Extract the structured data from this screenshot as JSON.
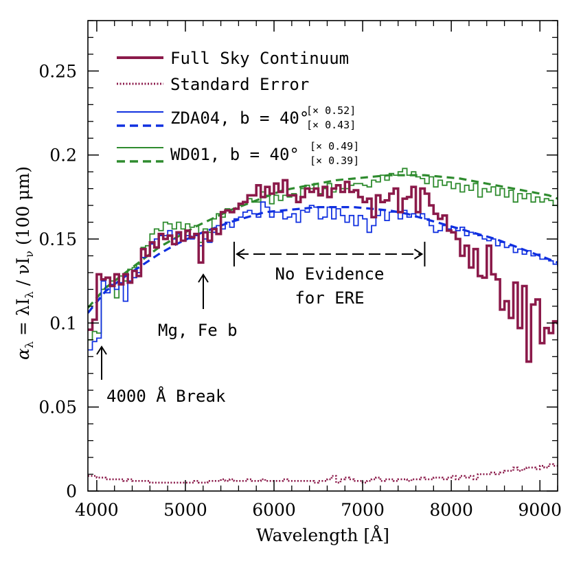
{
  "chart_data": {
    "type": "line",
    "xlabel": "Wavelength [Å]",
    "ylabel_parts": [
      "α",
      "λ",
      " = λI",
      "λ",
      " / νI",
      "ν",
      " (100 μm)"
    ],
    "xlim": [
      3900,
      9200
    ],
    "ylim": [
      0,
      0.28
    ],
    "x_ticks": [
      4000,
      5000,
      6000,
      7000,
      8000,
      9000
    ],
    "x_tick_labels": [
      "4000",
      "5000",
      "6000",
      "7000",
      "8000",
      "9000"
    ],
    "y_ticks": [
      0,
      0.05,
      0.1,
      0.15,
      0.2,
      0.25
    ],
    "y_tick_labels": [
      "0",
      "0.05",
      "0.1",
      "0.15",
      "0.2",
      "0.25"
    ],
    "legend_position": "top-left",
    "legend": [
      {
        "label": "Full Sky Continuum",
        "color": "#8b1a4a",
        "style": "solid-thick"
      },
      {
        "label": "Standard Error",
        "color": "#8b1a4a",
        "style": "dotted"
      },
      {
        "label": "ZDA04, b = 40°",
        "color": "#1030e0",
        "style": "solid+dashed",
        "scale_1": "[× 0.52]",
        "scale_2": "[× 0.43]"
      },
      {
        "label": "WD01, b = 40°",
        "color": "#2e8b2e",
        "style": "solid+dashed",
        "scale_1": "[× 0.49]",
        "scale_2": "[× 0.39]"
      }
    ],
    "annotations": {
      "break": "4000 Å Break",
      "mgfe": "Mg, Fe b",
      "ere_line1": "No Evidence",
      "ere_line2": "for ERE",
      "ere_range": [
        5550,
        7700
      ]
    },
    "colors": {
      "full_sky": "#8b1a4a",
      "zda": "#1030e0",
      "wd": "#2e8b2e"
    },
    "series": [
      {
        "name": "Full Sky Continuum",
        "style": "step-thick",
        "x": [
          3900,
          3950,
          4000,
          4050,
          4100,
          4150,
          4200,
          4250,
          4300,
          4350,
          4400,
          4450,
          4500,
          4550,
          4600,
          4650,
          4700,
          4750,
          4800,
          4850,
          4900,
          4950,
          5000,
          5050,
          5100,
          5150,
          5200,
          5250,
          5300,
          5350,
          5400,
          5450,
          5500,
          5550,
          5600,
          5650,
          5700,
          5750,
          5800,
          5850,
          5900,
          5950,
          6000,
          6050,
          6100,
          6150,
          6200,
          6250,
          6300,
          6350,
          6400,
          6450,
          6500,
          6550,
          6600,
          6650,
          6700,
          6750,
          6800,
          6850,
          6900,
          6950,
          7000,
          7050,
          7100,
          7150,
          7200,
          7250,
          7300,
          7350,
          7400,
          7450,
          7500,
          7550,
          7600,
          7650,
          7700,
          7750,
          7800,
          7850,
          7900,
          7950,
          8000,
          8050,
          8100,
          8150,
          8200,
          8250,
          8300,
          8350,
          8400,
          8450,
          8500,
          8550,
          8600,
          8650,
          8700,
          8750,
          8800,
          8850,
          8900,
          8950,
          9000,
          9050,
          9100,
          9150,
          9200
        ],
        "y": [
          0.096,
          0.102,
          0.129,
          0.126,
          0.127,
          0.122,
          0.129,
          0.123,
          0.129,
          0.124,
          0.131,
          0.128,
          0.144,
          0.14,
          0.148,
          0.145,
          0.153,
          0.15,
          0.152,
          0.147,
          0.154,
          0.149,
          0.155,
          0.151,
          0.153,
          0.136,
          0.154,
          0.149,
          0.156,
          0.153,
          0.166,
          0.167,
          0.166,
          0.168,
          0.171,
          0.172,
          0.176,
          0.176,
          0.182,
          0.175,
          0.181,
          0.177,
          0.183,
          0.178,
          0.185,
          0.176,
          0.176,
          0.172,
          0.175,
          0.18,
          0.178,
          0.18,
          0.176,
          0.181,
          0.175,
          0.18,
          0.182,
          0.178,
          0.184,
          0.178,
          0.179,
          0.175,
          0.172,
          0.174,
          0.163,
          0.176,
          0.172,
          0.173,
          0.177,
          0.18,
          0.166,
          0.174,
          0.175,
          0.181,
          0.166,
          0.18,
          0.177,
          0.17,
          0.165,
          0.162,
          0.164,
          0.155,
          0.154,
          0.15,
          0.14,
          0.146,
          0.133,
          0.144,
          0.128,
          0.127,
          0.146,
          0.129,
          0.126,
          0.108,
          0.113,
          0.103,
          0.124,
          0.097,
          0.122,
          0.077,
          0.111,
          0.114,
          0.088,
          0.097,
          0.094,
          0.101,
          0.1
        ]
      },
      {
        "name": "Standard Error",
        "style": "step-dotted",
        "x": [
          3900,
          3950,
          4000,
          4050,
          4100,
          4150,
          4200,
          4250,
          4300,
          4350,
          4400,
          4450,
          4500,
          4550,
          4600,
          4650,
          4700,
          4750,
          4800,
          4850,
          4900,
          4950,
          5000,
          5050,
          5100,
          5150,
          5200,
          5250,
          5300,
          5350,
          5400,
          5450,
          5500,
          5550,
          5600,
          5650,
          5700,
          5750,
          5800,
          5850,
          5900,
          5950,
          6000,
          6050,
          6100,
          6150,
          6200,
          6250,
          6300,
          6350,
          6400,
          6450,
          6500,
          6550,
          6600,
          6650,
          6700,
          6750,
          6800,
          6850,
          6900,
          6950,
          7000,
          7050,
          7100,
          7150,
          7200,
          7250,
          7300,
          7350,
          7400,
          7450,
          7500,
          7550,
          7600,
          7650,
          7700,
          7750,
          7800,
          7850,
          7900,
          7950,
          8000,
          8050,
          8100,
          8150,
          8200,
          8250,
          8300,
          8350,
          8400,
          8450,
          8500,
          8550,
          8600,
          8650,
          8700,
          8750,
          8800,
          8850,
          8900,
          8950,
          9000,
          9050,
          9100,
          9150,
          9200
        ],
        "y": [
          0.009,
          0.009,
          0.008,
          0.008,
          0.007,
          0.007,
          0.007,
          0.007,
          0.006,
          0.007,
          0.006,
          0.006,
          0.006,
          0.006,
          0.005,
          0.005,
          0.005,
          0.005,
          0.005,
          0.005,
          0.005,
          0.005,
          0.005,
          0.005,
          0.006,
          0.005,
          0.005,
          0.006,
          0.006,
          0.006,
          0.007,
          0.006,
          0.007,
          0.006,
          0.006,
          0.006,
          0.007,
          0.006,
          0.006,
          0.007,
          0.006,
          0.006,
          0.006,
          0.006,
          0.007,
          0.006,
          0.006,
          0.006,
          0.006,
          0.006,
          0.006,
          0.005,
          0.006,
          0.006,
          0.007,
          0.009,
          0.005,
          0.007,
          0.008,
          0.007,
          0.006,
          0.006,
          0.005,
          0.006,
          0.007,
          0.008,
          0.006,
          0.007,
          0.007,
          0.006,
          0.007,
          0.007,
          0.006,
          0.007,
          0.007,
          0.008,
          0.007,
          0.007,
          0.008,
          0.008,
          0.007,
          0.008,
          0.009,
          0.007,
          0.009,
          0.008,
          0.009,
          0.007,
          0.01,
          0.01,
          0.01,
          0.011,
          0.01,
          0.011,
          0.012,
          0.012,
          0.014,
          0.012,
          0.013,
          0.014,
          0.014,
          0.013,
          0.015,
          0.014,
          0.016,
          0.015,
          0.015
        ]
      },
      {
        "name": "ZDA04, b = 40° [× 0.52]",
        "style": "step",
        "x": [
          3900,
          3950,
          4000,
          4050,
          4100,
          4150,
          4200,
          4250,
          4300,
          4350,
          4400,
          4450,
          4500,
          4550,
          4600,
          4650,
          4700,
          4750,
          4800,
          4850,
          4900,
          4950,
          5000,
          5050,
          5100,
          5150,
          5200,
          5250,
          5300,
          5350,
          5400,
          5450,
          5500,
          5550,
          5600,
          5650,
          5700,
          5750,
          5800,
          5850,
          5900,
          5950,
          6000,
          6050,
          6100,
          6150,
          6200,
          6250,
          6300,
          6350,
          6400,
          6450,
          6500,
          6550,
          6600,
          6650,
          6700,
          6750,
          6800,
          6850,
          6900,
          6950,
          7000,
          7050,
          7100,
          7150,
          7200,
          7250,
          7300,
          7350,
          7400,
          7450,
          7500,
          7550,
          7600,
          7650,
          7700,
          7750,
          7800,
          7850,
          7900,
          7950,
          8000,
          8050,
          8100,
          8150,
          8200,
          8250,
          8300,
          8350,
          8400,
          8450,
          8500,
          8550,
          8600,
          8650,
          8700,
          8750,
          8800,
          8850,
          8900,
          8950,
          9000,
          9050,
          9100,
          9150,
          9200
        ],
        "y": [
          0.084,
          0.089,
          0.091,
          0.125,
          0.118,
          0.123,
          0.12,
          0.124,
          0.113,
          0.125,
          0.127,
          0.13,
          0.139,
          0.14,
          0.147,
          0.15,
          0.152,
          0.152,
          0.155,
          0.15,
          0.153,
          0.149,
          0.152,
          0.15,
          0.152,
          0.146,
          0.15,
          0.148,
          0.154,
          0.158,
          0.156,
          0.16,
          0.157,
          0.162,
          0.163,
          0.166,
          0.167,
          0.165,
          0.163,
          0.172,
          0.169,
          0.163,
          0.166,
          0.166,
          0.162,
          0.163,
          0.165,
          0.16,
          0.167,
          0.166,
          0.17,
          0.169,
          0.162,
          0.163,
          0.169,
          0.162,
          0.168,
          0.164,
          0.16,
          0.164,
          0.158,
          0.164,
          0.162,
          0.154,
          0.158,
          0.164,
          0.167,
          0.161,
          0.166,
          0.166,
          0.162,
          0.167,
          0.163,
          0.165,
          0.163,
          0.165,
          0.162,
          0.158,
          0.154,
          0.155,
          0.158,
          0.156,
          0.157,
          0.155,
          0.157,
          0.152,
          0.154,
          0.153,
          0.152,
          0.15,
          0.149,
          0.15,
          0.146,
          0.148,
          0.145,
          0.146,
          0.142,
          0.144,
          0.141,
          0.143,
          0.14,
          0.141,
          0.138,
          0.138,
          0.137,
          0.135,
          0.134
        ]
      },
      {
        "name": "ZDA04, b = 40° [× 0.43]",
        "style": "dashed",
        "x": [
          3900,
          4100,
          4300,
          4500,
          4700,
          4900,
          5100,
          5300,
          5500,
          5700,
          5900,
          6100,
          6300,
          6500,
          6700,
          6900,
          7100,
          7300,
          7500,
          7700,
          7900,
          8100,
          8300,
          8500,
          8700,
          8900,
          9100,
          9200
        ],
        "y": [
          0.106,
          0.119,
          0.127,
          0.134,
          0.141,
          0.147,
          0.152,
          0.156,
          0.16,
          0.163,
          0.166,
          0.167,
          0.168,
          0.169,
          0.169,
          0.169,
          0.168,
          0.167,
          0.165,
          0.162,
          0.159,
          0.156,
          0.153,
          0.15,
          0.146,
          0.142,
          0.138,
          0.136
        ]
      },
      {
        "name": "WD01, b = 40° [× 0.49]",
        "style": "step",
        "x": [
          3900,
          3950,
          4000,
          4050,
          4100,
          4150,
          4200,
          4250,
          4300,
          4350,
          4400,
          4450,
          4500,
          4550,
          4600,
          4650,
          4700,
          4750,
          4800,
          4850,
          4900,
          4950,
          5000,
          5050,
          5100,
          5150,
          5200,
          5250,
          5300,
          5350,
          5400,
          5450,
          5500,
          5550,
          5600,
          5650,
          5700,
          5750,
          5800,
          5850,
          5900,
          5950,
          6000,
          6050,
          6100,
          6150,
          6200,
          6250,
          6300,
          6350,
          6400,
          6450,
          6500,
          6550,
          6600,
          6650,
          6700,
          6750,
          6800,
          6850,
          6900,
          6950,
          7000,
          7050,
          7100,
          7150,
          7200,
          7250,
          7300,
          7350,
          7400,
          7450,
          7500,
          7550,
          7600,
          7650,
          7700,
          7750,
          7800,
          7850,
          7900,
          7950,
          8000,
          8050,
          8100,
          8150,
          8200,
          8250,
          8300,
          8350,
          8400,
          8450,
          8500,
          8550,
          8600,
          8650,
          8700,
          8750,
          8800,
          8850,
          8900,
          8950,
          9000,
          9050,
          9100,
          9150,
          9200
        ],
        "y": [
          0.09,
          0.095,
          0.094,
          0.12,
          0.122,
          0.125,
          0.115,
          0.128,
          0.125,
          0.132,
          0.133,
          0.135,
          0.145,
          0.146,
          0.153,
          0.156,
          0.155,
          0.16,
          0.159,
          0.156,
          0.16,
          0.156,
          0.159,
          0.157,
          0.158,
          0.148,
          0.156,
          0.154,
          0.162,
          0.165,
          0.163,
          0.168,
          0.166,
          0.168,
          0.17,
          0.172,
          0.174,
          0.172,
          0.172,
          0.178,
          0.176,
          0.171,
          0.176,
          0.173,
          0.176,
          0.175,
          0.177,
          0.172,
          0.18,
          0.182,
          0.18,
          0.183,
          0.177,
          0.18,
          0.183,
          0.178,
          0.182,
          0.18,
          0.18,
          0.182,
          0.183,
          0.183,
          0.182,
          0.181,
          0.185,
          0.184,
          0.188,
          0.185,
          0.189,
          0.188,
          0.19,
          0.192,
          0.188,
          0.19,
          0.187,
          0.186,
          0.183,
          0.187,
          0.181,
          0.185,
          0.182,
          0.184,
          0.18,
          0.183,
          0.178,
          0.182,
          0.179,
          0.183,
          0.175,
          0.18,
          0.178,
          0.181,
          0.176,
          0.18,
          0.175,
          0.179,
          0.172,
          0.177,
          0.174,
          0.177,
          0.172,
          0.175,
          0.172,
          0.174,
          0.173,
          0.17,
          0.169
        ]
      },
      {
        "name": "WD01, b = 40° [× 0.39]",
        "style": "dashed",
        "x": [
          3900,
          4100,
          4300,
          4500,
          4700,
          4900,
          5100,
          5300,
          5500,
          5700,
          5900,
          6100,
          6300,
          6500,
          6700,
          6900,
          7100,
          7300,
          7500,
          7700,
          7900,
          8100,
          8300,
          8500,
          8700,
          8900,
          9100,
          9200
        ],
        "y": [
          0.109,
          0.121,
          0.129,
          0.137,
          0.145,
          0.151,
          0.157,
          0.162,
          0.167,
          0.171,
          0.175,
          0.179,
          0.181,
          0.183,
          0.185,
          0.186,
          0.187,
          0.188,
          0.188,
          0.188,
          0.187,
          0.186,
          0.184,
          0.182,
          0.18,
          0.178,
          0.176,
          0.174
        ]
      }
    ]
  }
}
